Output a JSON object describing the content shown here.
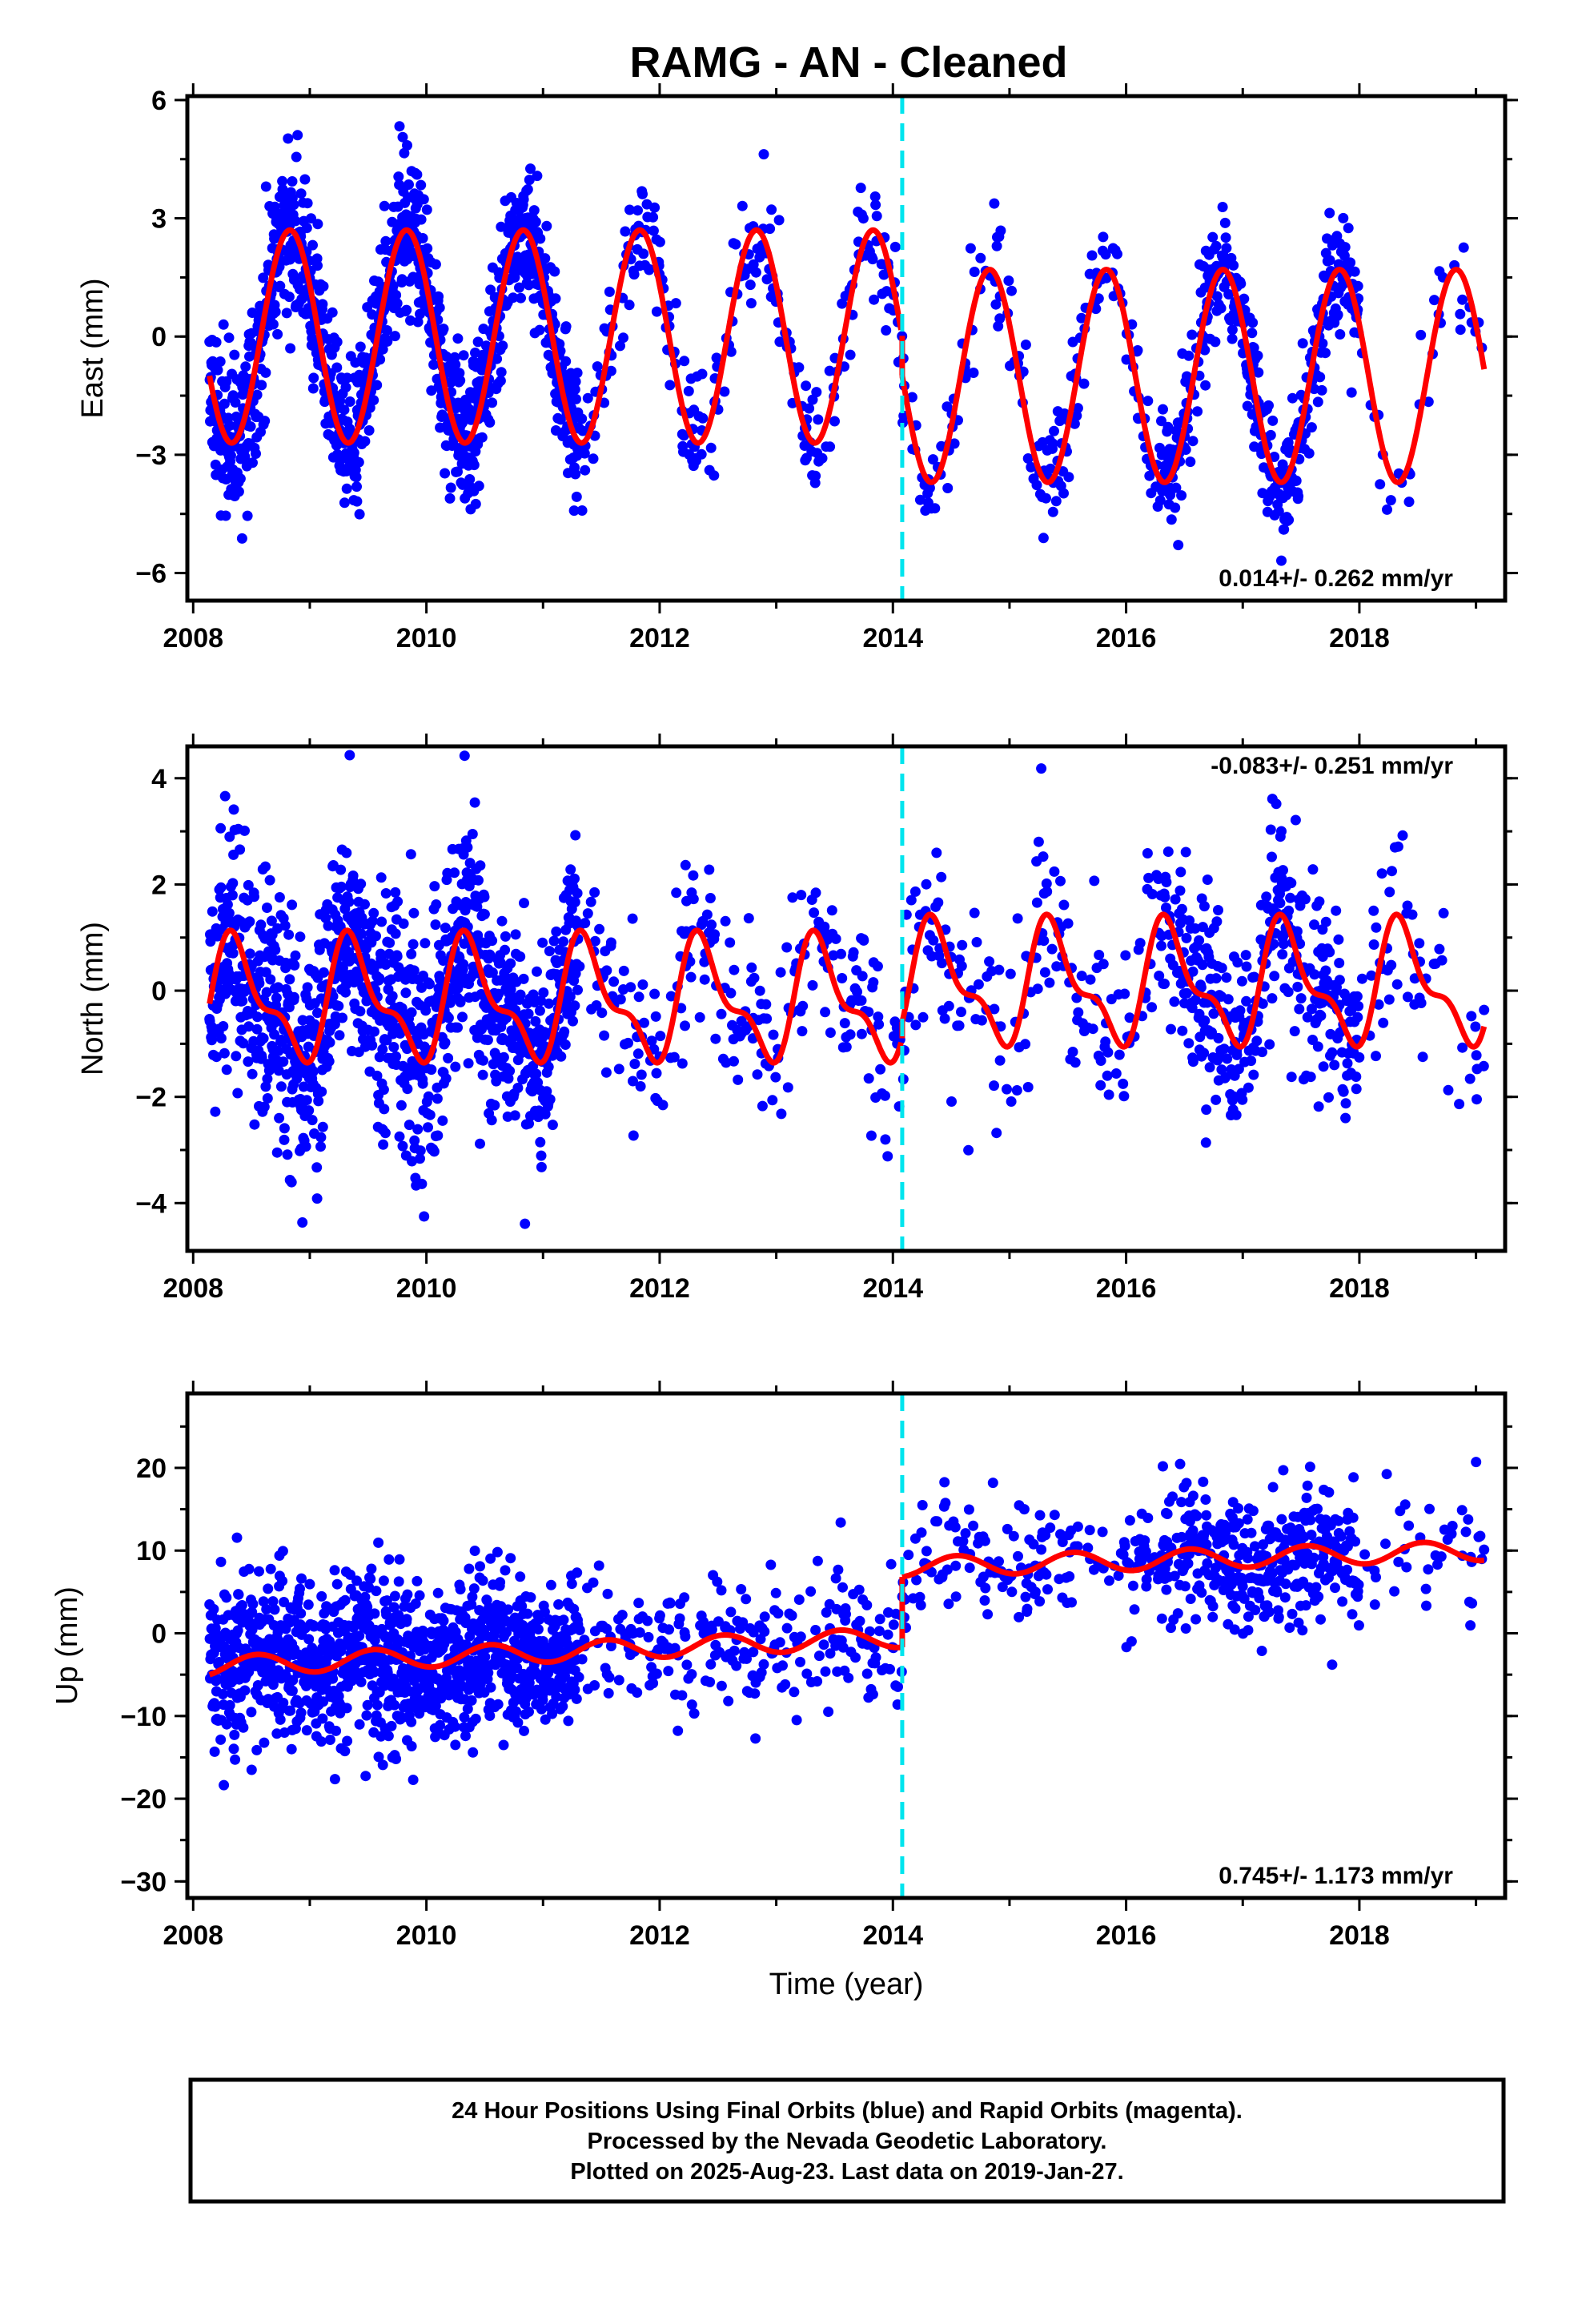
{
  "title": "RAMG  - AN - Cleaned",
  "footer": {
    "line1": "24 Hour Positions Using Final Orbits (blue) and Rapid Orbits (magenta).",
    "line2": "Processed by the Nevada Geodetic Laboratory.",
    "line3": "Plotted on 2025-Aug-23. Last data on 2019-Jan-27."
  },
  "colors": {
    "points": "#0000ff",
    "model": "#ff0000",
    "offset_line": "#00e5ee"
  },
  "chart_data": [
    {
      "type": "scatter",
      "ylabel": "East (mm)",
      "xlim": [
        2007.95,
        2019.25
      ],
      "ylim": [
        -6.7,
        6.1
      ],
      "xticks": [
        "2008",
        "2010",
        "2012",
        "2014",
        "2016",
        "2018"
      ],
      "yticks": [
        -6,
        -3,
        0,
        3,
        6
      ],
      "ytick_labels": [
        "−6",
        "−3",
        "0",
        "3",
        "6"
      ],
      "offset_epoch": 2014.08,
      "rate_label": "0.014+/- 0.262 mm/yr",
      "rate_position": "bottom-right",
      "model": {
        "annual_amplitude": 2.7,
        "annual_amplitude_after": 2.7,
        "peak_phase": 0.83,
        "mean_before": 0.0,
        "mean_after": -1.0
      },
      "data_range": [
        2008.14,
        2019.07
      ],
      "noise": 0.95
    },
    {
      "type": "scatter",
      "ylabel": "North (mm)",
      "xlim": [
        2007.95,
        2019.25
      ],
      "ylim": [
        -4.9,
        4.6
      ],
      "xticks": [
        "2008",
        "2010",
        "2012",
        "2014",
        "2016",
        "2018"
      ],
      "yticks": [
        -4,
        -2,
        0,
        2,
        4
      ],
      "ytick_labels": [
        "−4",
        "−2",
        "0",
        "2",
        "4"
      ],
      "offset_epoch": 2014.08,
      "rate_label": "-0.083+/- 0.251 mm/yr",
      "rate_position": "top-right",
      "model": {
        "annual_amplitude": 1.0,
        "semiannual_amplitude": 0.45,
        "peak_phase": 0.38,
        "mean_before": -0.2,
        "mean_after": 0.1
      },
      "data_range": [
        2008.14,
        2019.07
      ],
      "noise": 1.1
    },
    {
      "type": "scatter",
      "ylabel": "Up (mm)",
      "xlabel": "Time (year)",
      "xlim": [
        2007.95,
        2019.25
      ],
      "ylim": [
        -32,
        29
      ],
      "xticks": [
        "2008",
        "2010",
        "2012",
        "2014",
        "2016",
        "2018"
      ],
      "yticks": [
        -30,
        -20,
        -10,
        0,
        10,
        20
      ],
      "ytick_labels": [
        "−30",
        "−20",
        "−10",
        "0",
        "10",
        "20"
      ],
      "offset_epoch": 2014.08,
      "rate_label": "0.745+/- 1.173 mm/yr",
      "rate_position": "bottom-right",
      "model": {
        "annual_amplitude": 1.2,
        "peak_phase": 0.55,
        "mean_before_start": -4.0,
        "mean_before_end": -0.5,
        "jump_to": 8.0,
        "mean_after_end": 10.0
      },
      "data_range": [
        2008.14,
        2019.07
      ],
      "noise": 5.0
    }
  ]
}
